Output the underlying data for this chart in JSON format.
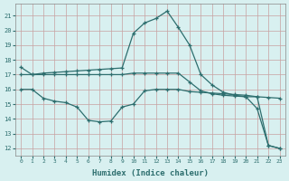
{
  "x": [
    0,
    1,
    2,
    3,
    4,
    5,
    6,
    7,
    8,
    9,
    10,
    11,
    12,
    13,
    14,
    15,
    16,
    17,
    18,
    19,
    20,
    21,
    22,
    23
  ],
  "line1_y": [
    17.5,
    17.0,
    17.1,
    17.15,
    17.2,
    17.25,
    17.3,
    17.35,
    17.4,
    17.45,
    19.8,
    20.5,
    20.8,
    21.3,
    20.2,
    19.0,
    17.0,
    16.3,
    15.8,
    15.6,
    15.5,
    14.7,
    12.2,
    12.0
  ],
  "line2_y": [
    16.0,
    16.0,
    15.4,
    15.2,
    15.1,
    14.8,
    13.9,
    13.8,
    13.85,
    14.8,
    15.0,
    15.9,
    16.0,
    16.0,
    16.0,
    15.85,
    15.8,
    15.75,
    15.7,
    15.65,
    15.6,
    15.5,
    12.2,
    12.0
  ],
  "line3_y": [
    17.0,
    17.0,
    17.0,
    17.0,
    17.0,
    17.0,
    17.0,
    17.0,
    17.0,
    17.0,
    17.1,
    17.1,
    17.1,
    17.1,
    17.1,
    16.5,
    15.9,
    15.7,
    15.6,
    15.55,
    15.5,
    15.5,
    15.45,
    15.4
  ],
  "xlabel": "Humidex (Indice chaleur)",
  "color": "#2d6e6e",
  "bg_color": "#d8f0f0",
  "grid_color": "#b0d8d8",
  "ylim": [
    11.5,
    21.8
  ],
  "xlim": [
    -0.5,
    23.5
  ]
}
